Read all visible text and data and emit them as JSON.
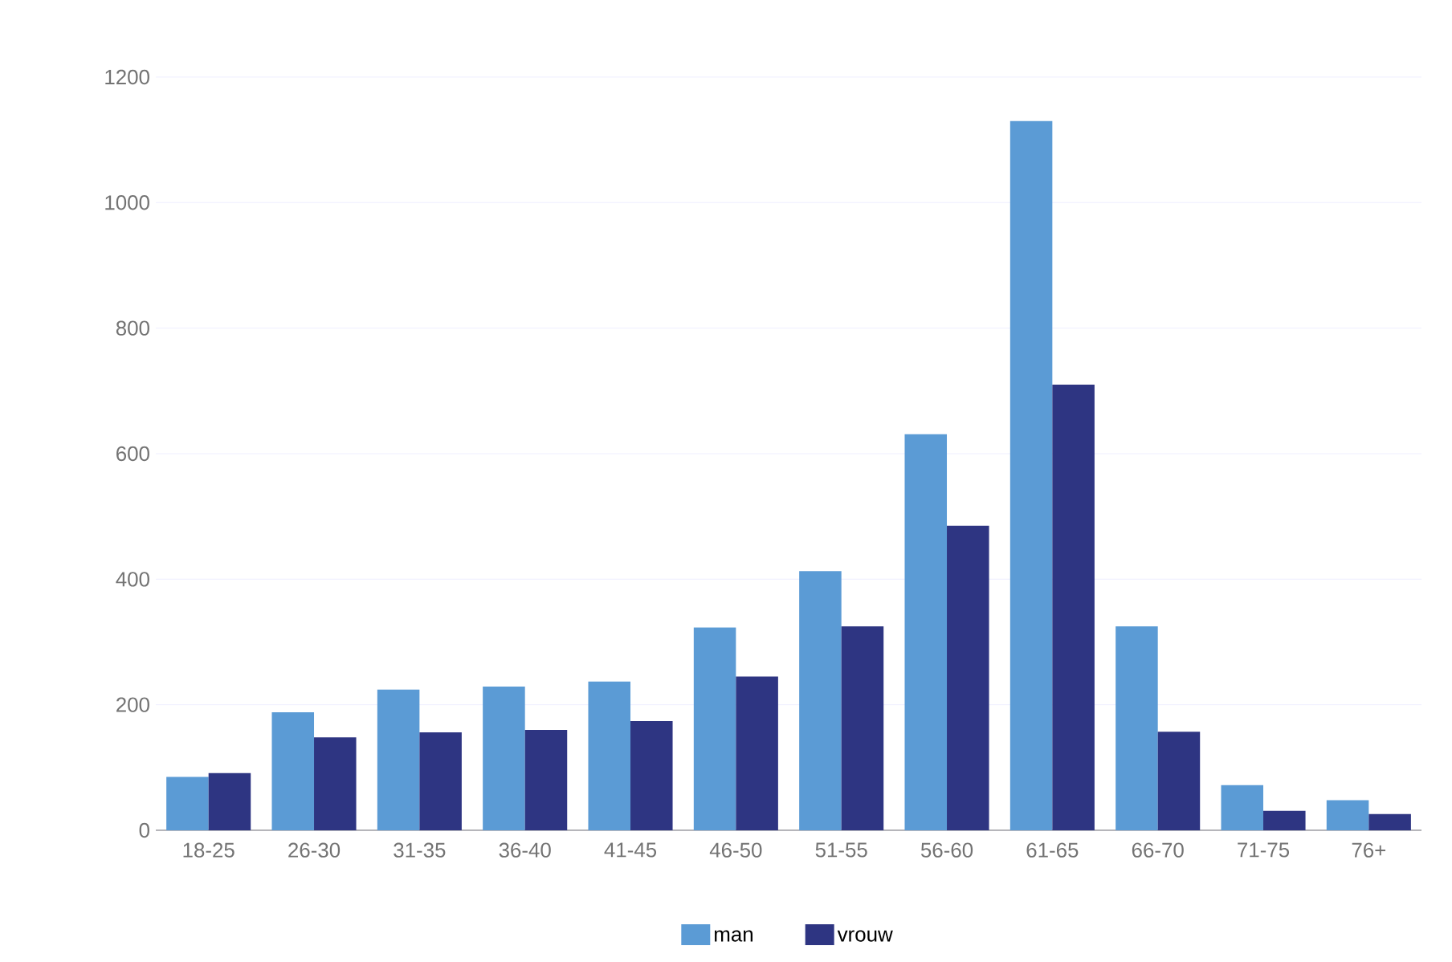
{
  "chart_data": {
    "type": "bar",
    "categories": [
      "18-25",
      "26-30",
      "31-35",
      "36-40",
      "41-45",
      "46-50",
      "51-55",
      "56-60",
      "61-65",
      "66-70",
      "71-75",
      "76+"
    ],
    "series": [
      {
        "name": "man",
        "color": "#5b9bd5",
        "values": [
          85,
          188,
          224,
          229,
          237,
          323,
          413,
          631,
          1130,
          325,
          72,
          48
        ]
      },
      {
        "name": "vrouw",
        "color": "#2e3582",
        "values": [
          91,
          148,
          156,
          160,
          174,
          245,
          325,
          485,
          710,
          157,
          31,
          26
        ]
      }
    ],
    "ylim": [
      0,
      1200
    ],
    "yticks": [
      0,
      200,
      400,
      600,
      800,
      1000,
      1200
    ],
    "grid": "y",
    "legend": "bottom"
  }
}
